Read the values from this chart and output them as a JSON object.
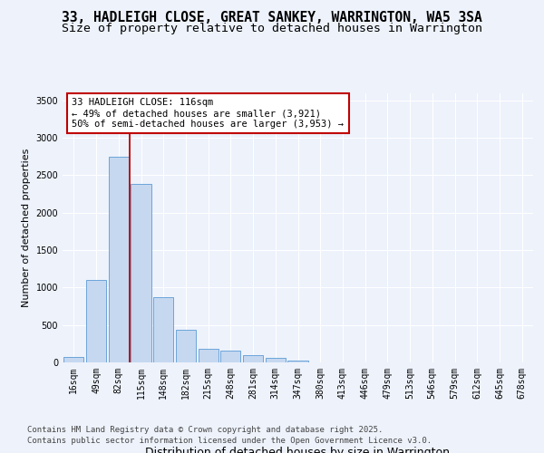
{
  "title_line1": "33, HADLEIGH CLOSE, GREAT SANKEY, WARRINGTON, WA5 3SA",
  "title_line2": "Size of property relative to detached houses in Warrington",
  "xlabel": "Distribution of detached houses by size in Warrington",
  "ylabel": "Number of detached properties",
  "categories": [
    "16sqm",
    "49sqm",
    "82sqm",
    "115sqm",
    "148sqm",
    "182sqm",
    "215sqm",
    "248sqm",
    "281sqm",
    "314sqm",
    "347sqm",
    "380sqm",
    "413sqm",
    "446sqm",
    "479sqm",
    "513sqm",
    "546sqm",
    "579sqm",
    "612sqm",
    "645sqm",
    "678sqm"
  ],
  "values": [
    75,
    1100,
    2750,
    2380,
    870,
    430,
    185,
    160,
    100,
    60,
    20,
    5,
    2,
    1,
    0,
    0,
    0,
    0,
    0,
    0,
    0
  ],
  "bar_color": "#c5d8f0",
  "bar_edge_color": "#5b9bd5",
  "vline_color": "#c00000",
  "vline_x": 2.5,
  "annotation_text": "33 HADLEIGH CLOSE: 116sqm\n← 49% of detached houses are smaller (3,921)\n50% of semi-detached houses are larger (3,953) →",
  "box_edge_color": "#c00000",
  "ylim": [
    0,
    3600
  ],
  "yticks": [
    0,
    500,
    1000,
    1500,
    2000,
    2500,
    3000,
    3500
  ],
  "bg_color": "#edf2fb",
  "grid_color": "#ffffff",
  "title_fontsize": 10.5,
  "subtitle_fontsize": 9.5,
  "tick_fontsize": 7,
  "ylabel_fontsize": 8,
  "xlabel_fontsize": 9,
  "annotation_fontsize": 7.5,
  "footnote_fontsize": 6.5,
  "footnote1": "Contains HM Land Registry data © Crown copyright and database right 2025.",
  "footnote2": "Contains public sector information licensed under the Open Government Licence v3.0."
}
